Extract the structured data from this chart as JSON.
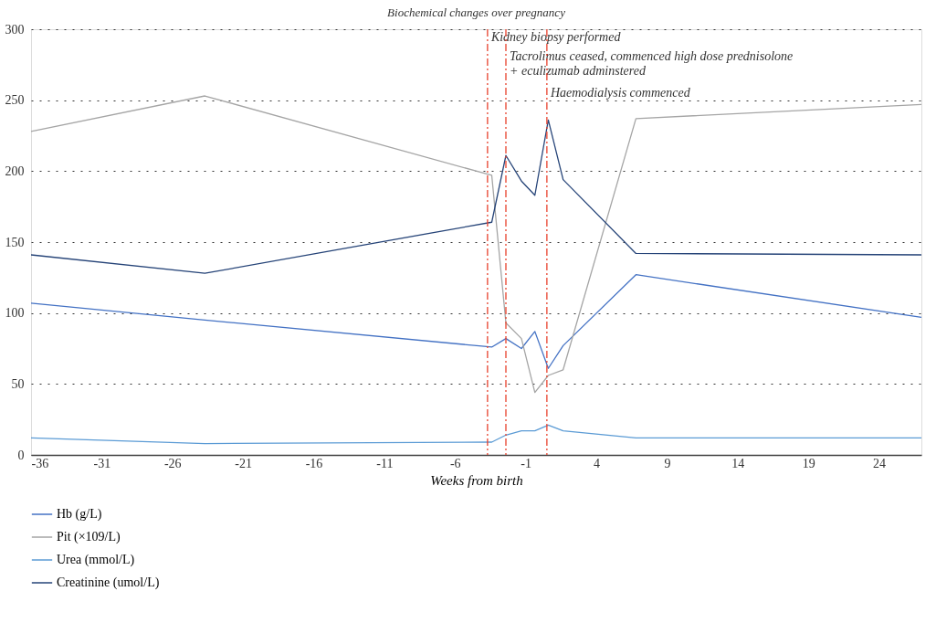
{
  "chart_data": {
    "type": "line",
    "title": "Biochemical changes over pregnancy",
    "xlabel": "Weeks from birth",
    "x": [
      -36,
      -23.7,
      -3.4,
      -2.4,
      -1.3,
      -0.35,
      0.6,
      1.65,
      6.8,
      27
    ],
    "xlim": [
      -36,
      27
    ],
    "xticks": [
      -36,
      -31,
      -26,
      -21,
      -16,
      -11,
      -6,
      -1,
      4,
      9,
      14,
      19,
      24
    ],
    "ylim": [
      0,
      300
    ],
    "yticks": [
      0,
      50,
      100,
      150,
      200,
      250,
      300
    ],
    "grid": "y",
    "legend": "bottom",
    "series": [
      {
        "name": "Hb (g/L)",
        "color": "#4472c4",
        "values": [
          107,
          95,
          76,
          82,
          75,
          87,
          61,
          77,
          127,
          97
        ]
      },
      {
        "name": "Pit (×109/L)",
        "color": "#a5a5a5",
        "values": [
          228,
          253,
          197,
          93,
          82,
          44,
          56,
          60,
          237,
          247
        ]
      },
      {
        "name": "Urea (mmol/L)",
        "color": "#5b9bd5",
        "values": [
          12,
          8,
          9,
          14,
          17,
          17,
          21,
          17,
          12,
          12
        ]
      },
      {
        "name": "Creatinine (umol/L)",
        "color": "#264478",
        "values": [
          141,
          128,
          164,
          211,
          193,
          183,
          236,
          194,
          142,
          141
        ]
      }
    ],
    "ref_lines": [
      {
        "axis": "x",
        "value": -3.7,
        "label": "Kidney biopsy performed",
        "color": "#e8412c",
        "line_style": "dashed"
      },
      {
        "axis": "x",
        "value": -2.4,
        "label": "Tacrolimus ceased, commenced high dose prednisolone\n+ eculizumab adminstered",
        "color": "#e8412c",
        "line_style": "dashed"
      },
      {
        "axis": "x",
        "value": 0.5,
        "label": "Haemodialysis commenced",
        "color": "#e8412c",
        "line_style": "dashed"
      }
    ]
  }
}
